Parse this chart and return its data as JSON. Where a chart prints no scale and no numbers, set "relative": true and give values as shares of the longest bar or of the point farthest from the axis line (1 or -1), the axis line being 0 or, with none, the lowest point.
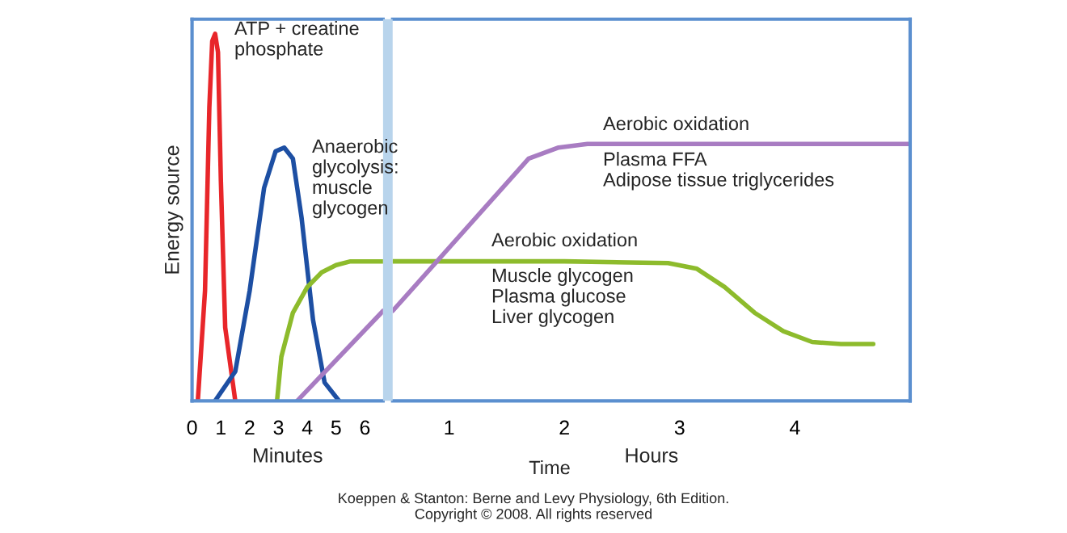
{
  "chart_data": [
    {
      "type": "line",
      "relative": true,
      "xlabel": "Minutes",
      "ylabel": "Energy source",
      "xlim": [
        0,
        6.63
      ],
      "xticks": [
        0,
        1,
        2,
        3,
        4,
        5,
        6
      ],
      "series": [
        {
          "color": "#e8262a",
          "x": [
            0.2,
            0.45,
            0.6,
            0.7,
            0.8,
            0.9,
            1.0,
            1.15,
            1.5
          ],
          "values": [
            0,
            0.3,
            0.8,
            0.98,
            1.0,
            0.95,
            0.6,
            0.2,
            0
          ]
        },
        {
          "color": "#1d4fa3",
          "x": [
            0.8,
            1.5,
            2.0,
            2.5,
            2.9,
            3.2,
            3.5,
            3.8,
            4.2,
            4.6,
            5.1
          ],
          "values": [
            0,
            0.08,
            0.3,
            0.58,
            0.68,
            0.69,
            0.66,
            0.5,
            0.22,
            0.05,
            0
          ]
        },
        {
          "color": "#8dbb2c",
          "x": [
            2.95,
            3.1,
            3.5,
            4.0,
            4.5,
            5.0,
            5.5,
            6.2,
            6.63
          ],
          "values": [
            0,
            0.12,
            0.24,
            0.31,
            0.35,
            0.37,
            0.38,
            0.38,
            0.38
          ]
        },
        {
          "color": "#a87cc2",
          "x": [
            3.65,
            6.63
          ],
          "values": [
            0,
            0.245
          ]
        }
      ],
      "annotations": [
        "ATP + creatine\nphosphate",
        "Anaerobic\nglycolysis:\nmuscle\nglycogen"
      ]
    },
    {
      "type": "line",
      "relative": true,
      "xlabel": "Hours",
      "xlim": [
        0.51,
        5.0
      ],
      "xticks": [
        1,
        2,
        3,
        4
      ],
      "series": [
        {
          "color": "#8dbb2c",
          "x": [
            0.51,
            2.0,
            2.9,
            3.15,
            3.39,
            3.65,
            3.9,
            4.15,
            4.4,
            4.68
          ],
          "values": [
            0.543,
            0.543,
            0.536,
            0.514,
            0.443,
            0.343,
            0.271,
            0.229,
            0.221,
            0.221
          ]
        },
        {
          "color": "#a87cc2",
          "x": [
            0.51,
            1.69,
            1.95,
            2.2,
            5.0
          ],
          "values": [
            0.35,
            0.943,
            0.986,
            1,
            1
          ]
        }
      ],
      "annotations": [
        "Aerobic oxidation",
        "Plasma FFA\nAdipose tissue triglycerides",
        "Aerobic oxidation",
        "Muscle glycogen\nPlasma glucose\nLiver glycogen",
        "Time",
        "Koeppen & Stanton: Berne and Levy Physiology, 6th Edition.\nCopyright © 2008. All rights reserved"
      ]
    }
  ]
}
